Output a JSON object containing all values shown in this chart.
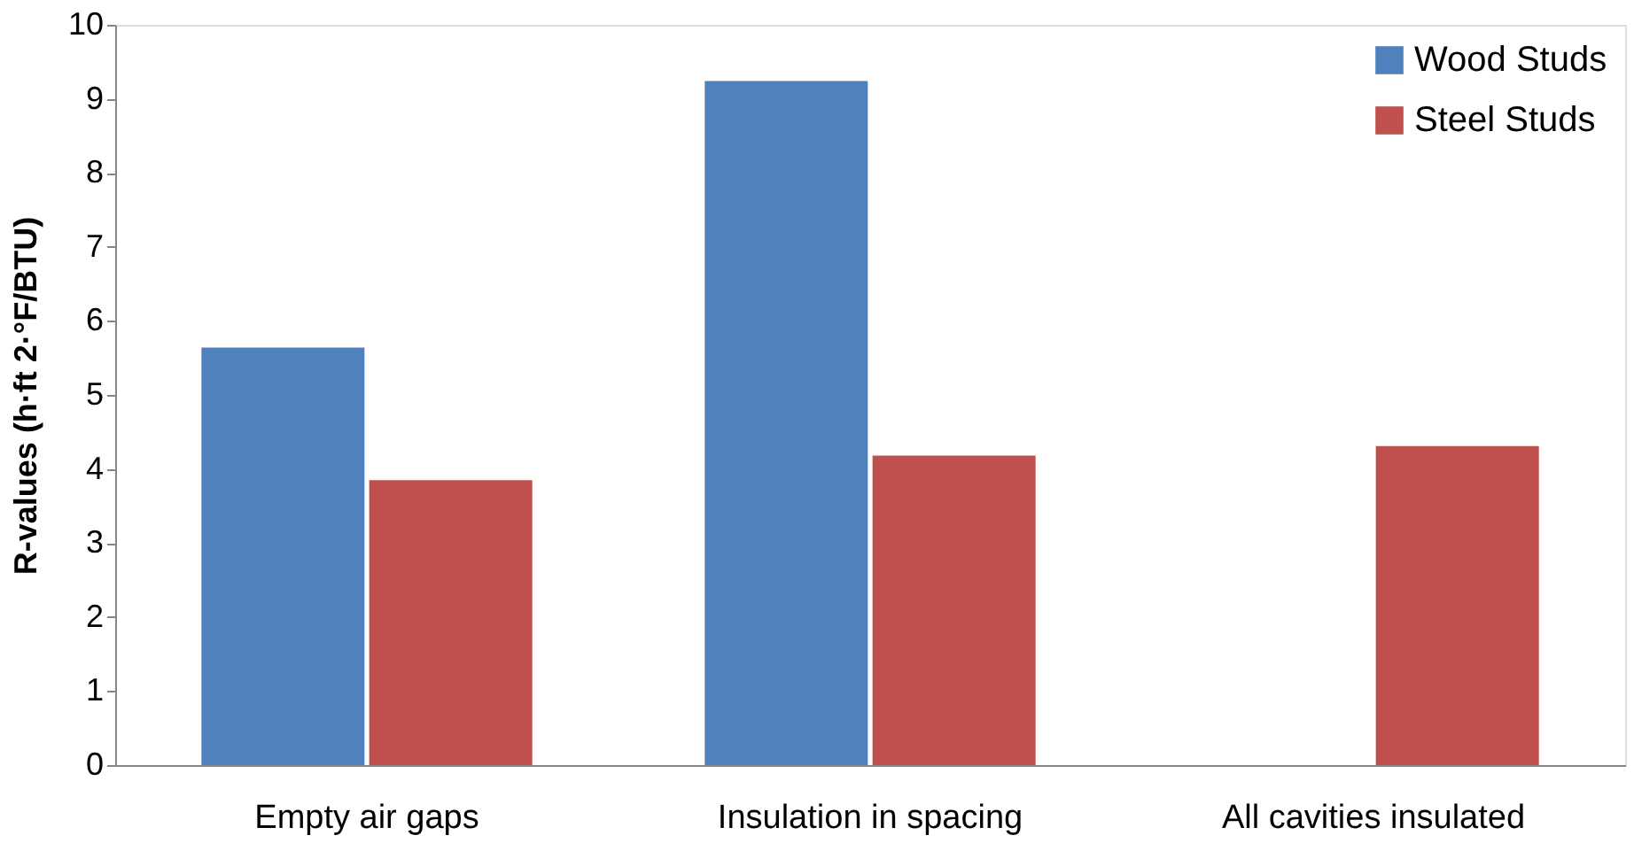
{
  "chart_data": {
    "type": "bar",
    "ylabel": "R-values (h·ft 2·°F/BTU)",
    "categories": [
      "Empty air gaps",
      "Insulation in spacing",
      "All cavities insulated"
    ],
    "series": [
      {
        "name": "Wood Studs",
        "color": "#4f81bd",
        "values": [
          5.64,
          9.24,
          null
        ]
      },
      {
        "name": "Steel Studs",
        "color": "#c0504d",
        "values": [
          3.85,
          4.18,
          4.31
        ]
      }
    ],
    "ylim": [
      0,
      10
    ],
    "yticks": [
      0,
      1,
      2,
      3,
      4,
      5,
      6,
      7,
      8,
      9,
      10
    ],
    "grid": false,
    "legend": "top right"
  }
}
